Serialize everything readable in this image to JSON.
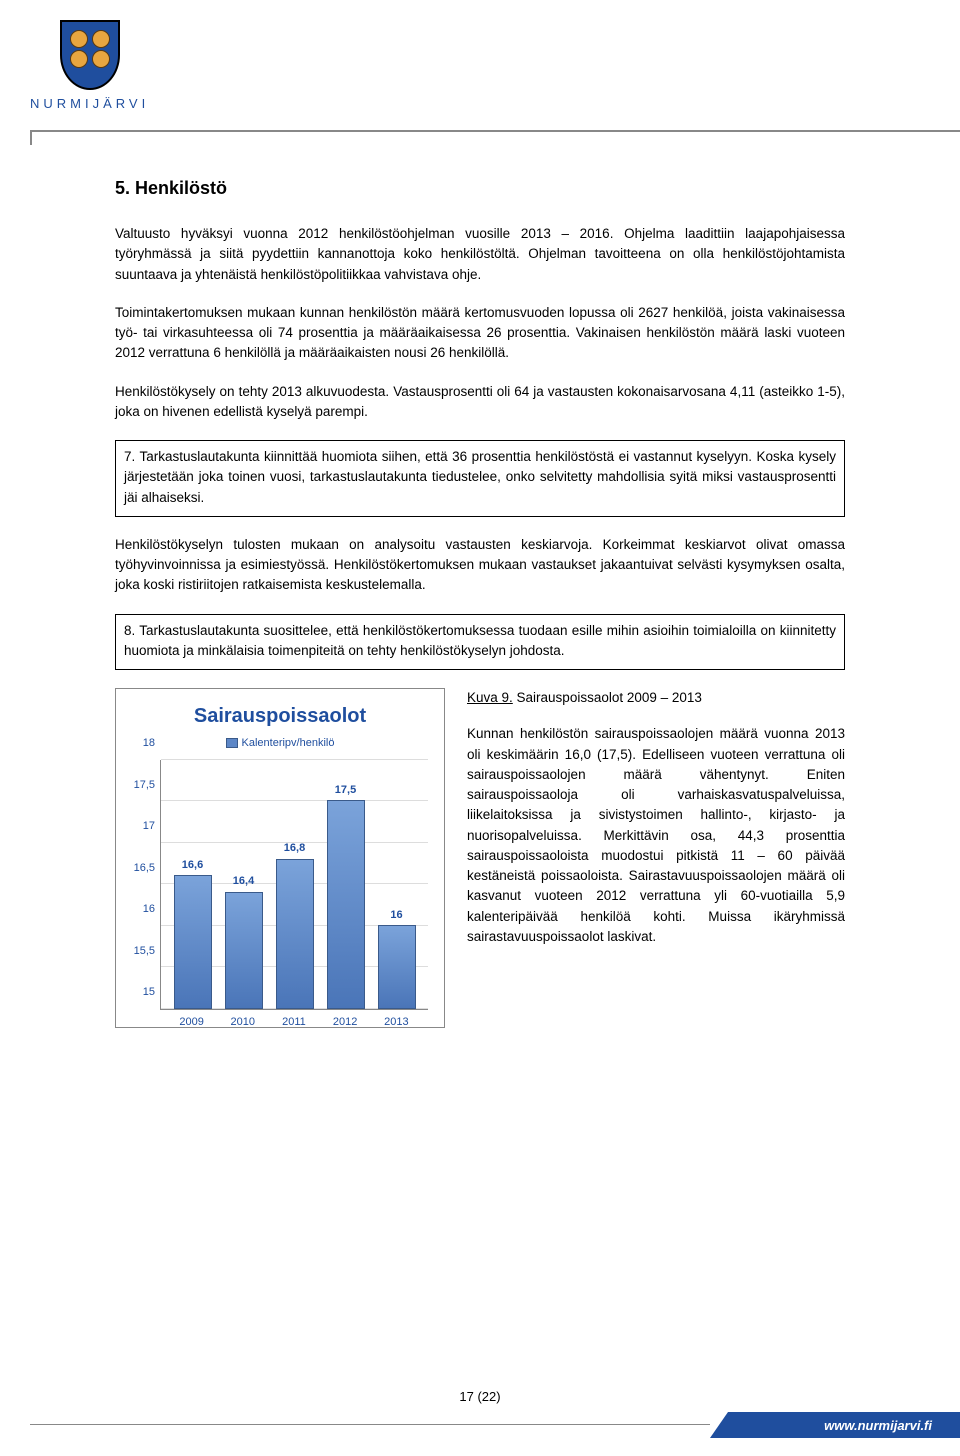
{
  "brand": "NURMIJÄRVI",
  "footer_url": "www.nurmijarvi.fi",
  "page_number": "17 (22)",
  "heading": "5. Henkilöstö",
  "paragraphs": {
    "p1": "Valtuusto hyväksyi vuonna 2012 henkilöstöohjelman vuosille 2013 – 2016. Ohjelma laadittiin laajapohjaisessa työryhmässä ja siitä pyydettiin kannanottoja koko henkilöstöltä. Ohjelman tavoitteena on olla henkilöstöjohtamista suuntaava ja yhtenäistä henkilöstöpolitiikkaa vahvistava ohje.",
    "p2": "Toimintakertomuksen mukaan kunnan henkilöstön määrä kertomusvuoden lopussa oli 2627 henkilöä, joista vakinaisessa työ- tai virkasuhteessa oli 74 prosenttia ja määräaikaisessa 26 prosenttia. Vakinaisen henkilöstön määrä laski vuoteen 2012 verrattuna 6 henkilöllä ja määräaikaisten nousi 26 henkilöllä.",
    "p3": "Henkilöstökysely on tehty 2013 alkuvuodesta. Vastausprosentti oli 64 ja vastausten kokonaisarvosana 4,11 (asteikko 1-5), joka on hivenen edellistä kyselyä parempi.",
    "box1": "7. Tarkastuslautakunta kiinnittää huomiota siihen, että 36 prosenttia henkilöstöstä ei vastannut kyselyyn. Koska kysely järjestetään joka toinen vuosi, tarkastuslautakunta tiedustelee, onko selvitetty mahdollisia syitä miksi vastausprosentti jäi alhaiseksi.",
    "p4": "Henkilöstökyselyn tulosten mukaan on analysoitu vastausten keskiarvoja. Korkeimmat keskiarvot olivat omassa työhyvinvoinnissa ja esimiestyössä. Henkilöstökertomuksen mukaan vastaukset jakaantuivat selvästi kysymyksen osalta, joka koski ristiriitojen ratkaisemista keskustelemalla.",
    "box2": "8. Tarkastuslautakunta suosittelee, että henkilöstökertomuksessa tuodaan esille mihin asioihin toimialoilla on kiinnitetty huomiota ja minkälaisia toimenpiteitä on tehty henkilöstökyselyn johdosta.",
    "figcap_label": "Kuva 9.",
    "figcap_text": " Sairauspoissaolot 2009 – 2013",
    "p5": "Kunnan henkilöstön sairauspoissaolojen määrä vuonna 2013 oli keskimäärin 16,0 (17,5). Edelliseen vuoteen verrattuna oli sairauspoissaolojen määrä vähentynyt. Eniten sairauspoissaoloja oli varhaiskasvatuspalveluissa, liikelaitoksissa ja sivistystoimen hallinto-, kirjasto- ja nuorisopalveluissa. Merkittävin osa, 44,3 prosenttia sairauspoissaoloista muodostui pitkistä 11 – 60 päivää kestäneistä poissaoloista. Sairastavuuspoissaolojen määrä oli kasvanut vuoteen 2012 verrattuna yli 60-vuotiailla 5,9 kalenteripäivää henkilöä kohti. Muissa ikäryhmissä sairastavuuspoissaolot laskivat."
  },
  "chart": {
    "title": "Sairauspoissaolot",
    "legend": "Kalenteripv/henkilö",
    "ymin": 15,
    "ymax": 18,
    "ytick_step": 0.5,
    "yticks": [
      "15",
      "15,5",
      "16",
      "16,5",
      "17",
      "17,5",
      "18"
    ],
    "categories": [
      "2009",
      "2010",
      "2011",
      "2012",
      "2013"
    ],
    "values": [
      16.6,
      16.4,
      16.8,
      17.5,
      16.0
    ],
    "value_labels": [
      "16,6",
      "16,4",
      "16,8",
      "17,5",
      "16"
    ],
    "bar_color": "#5d87c7",
    "title_color": "#1f4e9e",
    "label_color": "#1f4e9e",
    "grid_color": "#dddddd",
    "background_color": "#ffffff"
  }
}
